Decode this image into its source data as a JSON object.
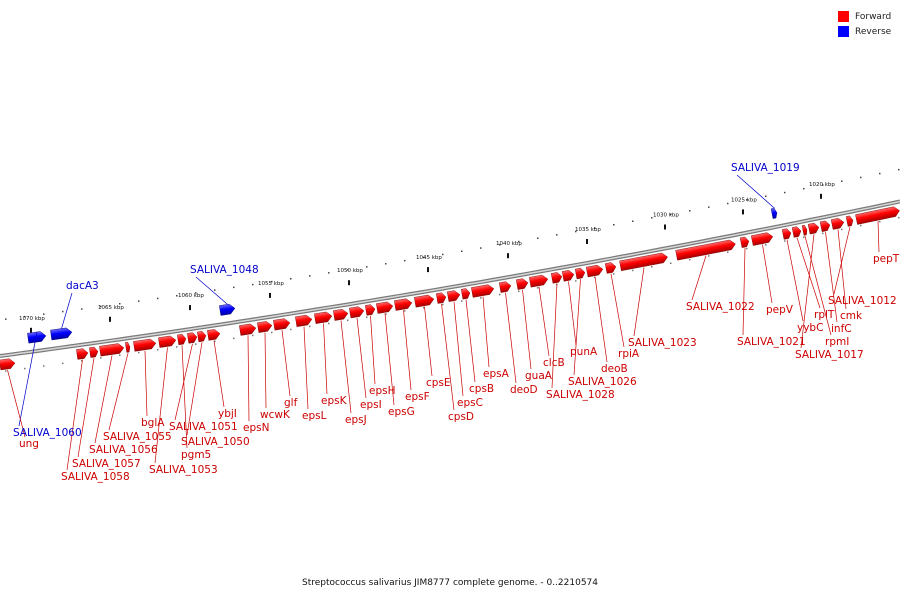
{
  "legend": {
    "forward_label": "Forward",
    "reverse_label": "Reverse",
    "forward_color": "#ff0000",
    "reverse_color": "#0000ff"
  },
  "caption": "Streptococcus salivarius JIM8777 complete genome. - 0..2210574",
  "ruler": {
    "unit": "kbp",
    "ticks": [
      {
        "kbp": 1070,
        "label": "1070 kbp"
      },
      {
        "kbp": 1065,
        "label": "1065 kbp"
      },
      {
        "kbp": 1060,
        "label": "1060 kbp"
      },
      {
        "kbp": 1055,
        "label": "1055 kbp"
      },
      {
        "kbp": 1050,
        "label": "1050 kbp"
      },
      {
        "kbp": 1045,
        "label": "1045 kbp"
      },
      {
        "kbp": 1040,
        "label": "1040 kbp"
      },
      {
        "kbp": 1035,
        "label": "1035 kbp"
      },
      {
        "kbp": 1030,
        "label": "1030 kbp"
      },
      {
        "kbp": 1025,
        "label": "1025 kbp"
      },
      {
        "kbp": 1020,
        "label": "1020 kbp"
      }
    ]
  },
  "genes": [
    {
      "name": "SALIVA_1060",
      "strand": "reverse"
    },
    {
      "name": "ung",
      "strand": "forward"
    },
    {
      "name": "dacA3",
      "strand": "reverse"
    },
    {
      "name": "SALIVA_1058",
      "strand": "forward"
    },
    {
      "name": "SALIVA_1057",
      "strand": "forward"
    },
    {
      "name": "SALIVA_1056",
      "strand": "forward"
    },
    {
      "name": "SALIVA_1055",
      "strand": "forward"
    },
    {
      "name": "bglA",
      "strand": "forward"
    },
    {
      "name": "SALIVA_1053",
      "strand": "forward"
    },
    {
      "name": "pgm5",
      "strand": "forward"
    },
    {
      "name": "SALIVA_1051",
      "strand": "forward"
    },
    {
      "name": "SALIVA_1050",
      "strand": "forward"
    },
    {
      "name": "ybjI",
      "strand": "forward"
    },
    {
      "name": "SALIVA_1048",
      "strand": "reverse"
    },
    {
      "name": "epsN",
      "strand": "forward"
    },
    {
      "name": "wcwK",
      "strand": "forward"
    },
    {
      "name": "glf",
      "strand": "forward"
    },
    {
      "name": "epsL",
      "strand": "forward"
    },
    {
      "name": "epsK",
      "strand": "forward"
    },
    {
      "name": "epsJ",
      "strand": "forward"
    },
    {
      "name": "epsI",
      "strand": "forward"
    },
    {
      "name": "epsH",
      "strand": "forward"
    },
    {
      "name": "epsG",
      "strand": "forward"
    },
    {
      "name": "epsF",
      "strand": "forward"
    },
    {
      "name": "cpsE",
      "strand": "forward"
    },
    {
      "name": "cpsD",
      "strand": "forward"
    },
    {
      "name": "epsC",
      "strand": "forward"
    },
    {
      "name": "cpsB",
      "strand": "forward"
    },
    {
      "name": "epsA",
      "strand": "forward"
    },
    {
      "name": "deoD",
      "strand": "forward"
    },
    {
      "name": "guaA",
      "strand": "forward"
    },
    {
      "name": "clcB",
      "strand": "forward"
    },
    {
      "name": "SALIVA_1028",
      "strand": "forward"
    },
    {
      "name": "punA",
      "strand": "forward"
    },
    {
      "name": "SALIVA_1026",
      "strand": "forward"
    },
    {
      "name": "deoB",
      "strand": "forward"
    },
    {
      "name": "rpiA",
      "strand": "forward"
    },
    {
      "name": "SALIVA_1023",
      "strand": "forward"
    },
    {
      "name": "SALIVA_1022",
      "strand": "forward"
    },
    {
      "name": "SALIVA_1021",
      "strand": "forward"
    },
    {
      "name": "pepV",
      "strand": "forward"
    },
    {
      "name": "SALIVA_1019",
      "strand": "reverse"
    },
    {
      "name": "yybC",
      "strand": "forward"
    },
    {
      "name": "rplT",
      "strand": "forward"
    },
    {
      "name": "rpmI",
      "strand": "forward"
    },
    {
      "name": "SALIVA_1017",
      "strand": "forward"
    },
    {
      "name": "infC",
      "strand": "forward"
    },
    {
      "name": "cmk",
      "strand": "forward"
    },
    {
      "name": "SALIVA_1012",
      "strand": "forward"
    },
    {
      "name": "pepT",
      "strand": "forward"
    }
  ]
}
